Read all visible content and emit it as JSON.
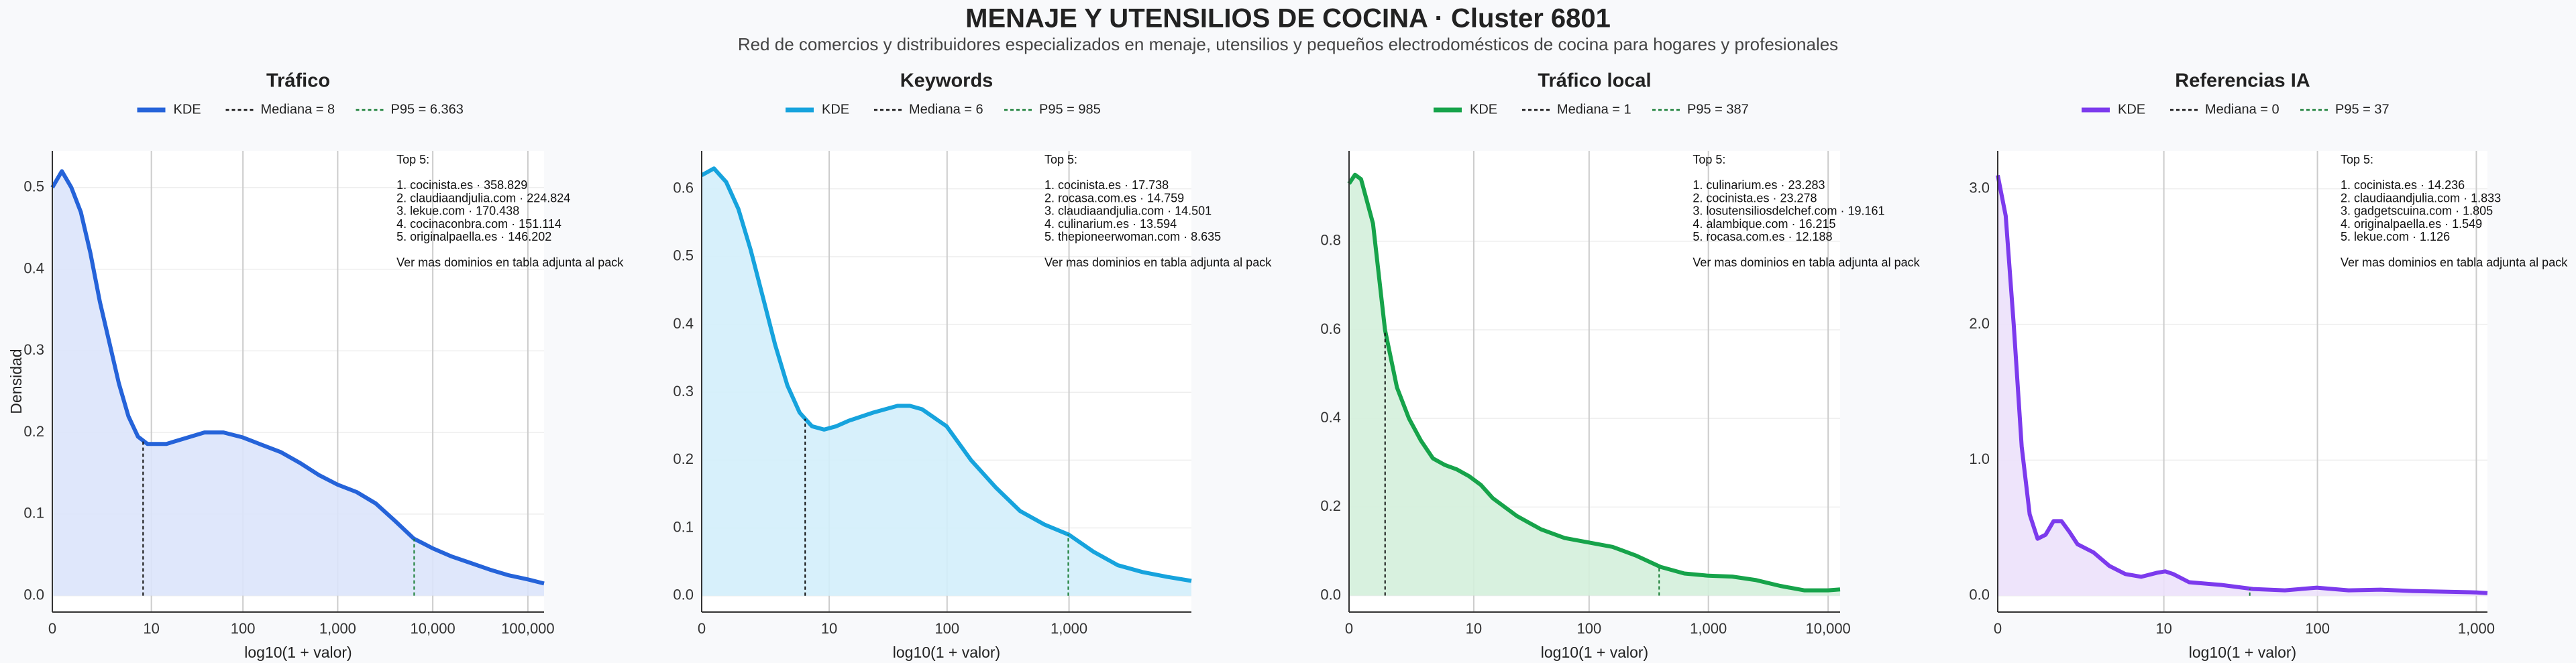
{
  "title": "MENAJE Y UTENSILIOS DE COCINA · Cluster 6801",
  "subtitle": "Red de comercios y distribuidores especializados en menaje, utensilios y pequeños electrodomésticos de cocina para hogares y profesionales",
  "chart_data": [
    {
      "type": "kde",
      "title": "Tráfico",
      "xlabel": "log10(1 + valor)",
      "ylabel": "Densidad",
      "grid": true,
      "xlim": [
        0,
        5.17
      ],
      "ylim": [
        -0.02,
        0.545
      ],
      "xticks": [
        0,
        {
          "value": 1.0414,
          "label": "10"
        },
        {
          "value": 2.0043,
          "label": "100"
        },
        {
          "value": 3.0004,
          "label": "1,000"
        },
        {
          "value": 4.00004,
          "label": "10,000"
        },
        {
          "value": 5.0,
          "label": "100,000"
        }
      ],
      "yticks": [
        {
          "value": 0,
          "label": "0.0"
        },
        0.1,
        0.2,
        0.3,
        0.4,
        0.5
      ],
      "series": [
        {
          "name": "KDE",
          "color": "#2563d9",
          "fill": "#dbe4fb",
          "x": [
            0,
            0.1,
            0.2,
            0.3,
            0.4,
            0.5,
            0.6,
            0.7,
            0.8,
            0.9,
            1.0,
            1.2,
            1.4,
            1.6,
            1.8,
            2.0,
            2.2,
            2.4,
            2.6,
            2.8,
            3.0,
            3.2,
            3.4,
            3.6,
            3.8,
            4.0,
            4.2,
            4.4,
            4.6,
            4.8,
            5.0,
            5.17
          ],
          "values": [
            0.5,
            0.52,
            0.5,
            0.47,
            0.42,
            0.36,
            0.31,
            0.26,
            0.22,
            0.195,
            0.186,
            0.186,
            0.193,
            0.2,
            0.2,
            0.194,
            0.185,
            0.176,
            0.163,
            0.148,
            0.136,
            0.127,
            0.113,
            0.092,
            0.07,
            0.058,
            0.048,
            0.04,
            0.032,
            0.025,
            0.02,
            0.015
          ]
        }
      ],
      "median": {
        "name": "Mediana = 8",
        "x": 0.954,
        "color": "#111111"
      },
      "p95": {
        "name": "P95 = 6.363",
        "x": 3.804,
        "color": "#1a7f37"
      },
      "annotation": [
        "Top 5:",
        "1. cocinista.es · 358.829",
        "2. claudiaandjulia.com · 224.824",
        "3. lekue.com · 170.438",
        "4. cocinaconbra.com · 151.114",
        "5. originalpaella.es · 146.202",
        "Ver mas dominios en tabla adjunta al pack"
      ]
    },
    {
      "type": "kde",
      "title": "Keywords",
      "xlabel": "log10(1 + valor)",
      "grid": true,
      "xlim": [
        0,
        4.0
      ],
      "ylim": [
        -0.024,
        0.656
      ],
      "xticks": [
        0,
        {
          "value": 1.0414,
          "label": "10"
        },
        {
          "value": 2.0043,
          "label": "100"
        },
        {
          "value": 3.0004,
          "label": "1,000"
        }
      ],
      "yticks": [
        {
          "value": 0,
          "label": "0.0"
        },
        0.1,
        0.2,
        0.3,
        0.4,
        0.5,
        0.6
      ],
      "series": [
        {
          "name": "KDE",
          "color": "#16a3dd",
          "fill": "#d3eefb",
          "x": [
            0,
            0.1,
            0.2,
            0.3,
            0.4,
            0.5,
            0.6,
            0.7,
            0.8,
            0.9,
            1.0,
            1.1,
            1.2,
            1.4,
            1.6,
            1.7,
            1.8,
            2.0,
            2.2,
            2.4,
            2.6,
            2.8,
            3.0,
            3.2,
            3.4,
            3.6,
            3.8,
            4.0
          ],
          "values": [
            0.62,
            0.63,
            0.61,
            0.57,
            0.51,
            0.44,
            0.37,
            0.31,
            0.27,
            0.25,
            0.245,
            0.25,
            0.258,
            0.27,
            0.28,
            0.28,
            0.275,
            0.25,
            0.2,
            0.16,
            0.125,
            0.105,
            0.09,
            0.065,
            0.045,
            0.035,
            0.028,
            0.022
          ]
        }
      ],
      "median": {
        "name": "Mediana = 6",
        "x": 0.845,
        "color": "#111111"
      },
      "p95": {
        "name": "P95 = 985",
        "x": 2.994,
        "color": "#1a7f37"
      },
      "annotation": [
        "Top 5:",
        "1. cocinista.es · 17.738",
        "2. rocasa.com.es · 14.759",
        "3. claudiaandjulia.com · 14.501",
        "4. culinarium.es · 13.594",
        "5. thepioneerwoman.com · 8.635",
        "Ver mas dominios en tabla adjunta al pack"
      ]
    },
    {
      "type": "kde",
      "title": "Tráfico local",
      "xlabel": "log10(1 + valor)",
      "grid": true,
      "xlim": [
        0,
        4.1
      ],
      "ylim": [
        -0.037,
        1.004
      ],
      "xticks": [
        0,
        {
          "value": 1.0414,
          "label": "10"
        },
        {
          "value": 2.0043,
          "label": "100"
        },
        {
          "value": 3.0004,
          "label": "1,000"
        },
        {
          "value": 4.00004,
          "label": "10,000"
        }
      ],
      "yticks": [
        {
          "value": 0,
          "label": "0.0"
        },
        0.2,
        0.4,
        0.6,
        0.8
      ],
      "series": [
        {
          "name": "KDE",
          "color": "#16a34a",
          "fill": "#d4efdc",
          "x": [
            0,
            0.05,
            0.1,
            0.2,
            0.3,
            0.4,
            0.5,
            0.6,
            0.7,
            0.8,
            0.9,
            1.0,
            1.1,
            1.2,
            1.4,
            1.6,
            1.8,
            2.0,
            2.2,
            2.4,
            2.6,
            2.8,
            3.0,
            3.2,
            3.4,
            3.6,
            3.8,
            4.0,
            4.1
          ],
          "values": [
            0.93,
            0.95,
            0.94,
            0.84,
            0.6,
            0.47,
            0.4,
            0.35,
            0.31,
            0.295,
            0.285,
            0.27,
            0.25,
            0.22,
            0.18,
            0.15,
            0.13,
            0.12,
            0.11,
            0.09,
            0.065,
            0.05,
            0.045,
            0.043,
            0.035,
            0.022,
            0.012,
            0.012,
            0.014
          ]
        }
      ],
      "median": {
        "name": "Mediana = 1",
        "x": 0.301,
        "color": "#111111"
      },
      "p95": {
        "name": "P95 = 387",
        "x": 2.589,
        "color": "#1a7f37"
      },
      "annotation": [
        "Top 5:",
        "1. culinarium.es · 23.283",
        "2. cocinista.es · 23.278",
        "3. losutensiliosdelchef.com · 19.161",
        "4. alambique.com · 16.215",
        "5. rocasa.com.es · 12.188",
        "Ver mas dominios en tabla adjunta al pack"
      ]
    },
    {
      "type": "kde",
      "title": "Referencias IA",
      "xlabel": "log10(1 + valor)",
      "grid": true,
      "xlim": [
        0,
        3.07
      ],
      "ylim": [
        -0.12,
        3.28
      ],
      "xticks": [
        0,
        {
          "value": 1.0414,
          "label": "10"
        },
        {
          "value": 2.0043,
          "label": "100"
        },
        {
          "value": 3.0004,
          "label": "1,000"
        }
      ],
      "yticks": [
        {
          "value": 0,
          "label": "0.0"
        },
        {
          "value": 1,
          "label": "1.0"
        },
        {
          "value": 2,
          "label": "2.0"
        },
        {
          "value": 3,
          "label": "3.0"
        }
      ],
      "series": [
        {
          "name": "KDE",
          "color": "#7c3aed",
          "fill": "#ece1fb",
          "x": [
            0,
            0.05,
            0.1,
            0.15,
            0.2,
            0.25,
            0.3,
            0.35,
            0.4,
            0.45,
            0.5,
            0.6,
            0.7,
            0.8,
            0.9,
            1.0,
            1.05,
            1.1,
            1.2,
            1.4,
            1.6,
            1.8,
            2.0,
            2.2,
            2.4,
            2.6,
            2.8,
            3.0,
            3.07
          ],
          "values": [
            3.1,
            2.8,
            2.0,
            1.1,
            0.6,
            0.42,
            0.45,
            0.55,
            0.55,
            0.47,
            0.38,
            0.32,
            0.22,
            0.16,
            0.14,
            0.17,
            0.18,
            0.16,
            0.1,
            0.08,
            0.05,
            0.04,
            0.06,
            0.04,
            0.045,
            0.035,
            0.03,
            0.025,
            0.02
          ]
        }
      ],
      "median": {
        "name": "Mediana = 0",
        "x": 0,
        "color": "#111111"
      },
      "p95": {
        "name": "P95 = 37",
        "x": 1.58,
        "color": "#1a7f37"
      },
      "annotation": [
        "Top 5:",
        "1. cocinista.es · 14.236",
        "2. claudiaandjulia.com · 1.833",
        "3. gadgetscuina.com · 1.805",
        "4. originalpaella.es · 1.549",
        "5. lekue.com · 1.126",
        "Ver mas dominios en tabla adjunta al pack"
      ]
    }
  ]
}
